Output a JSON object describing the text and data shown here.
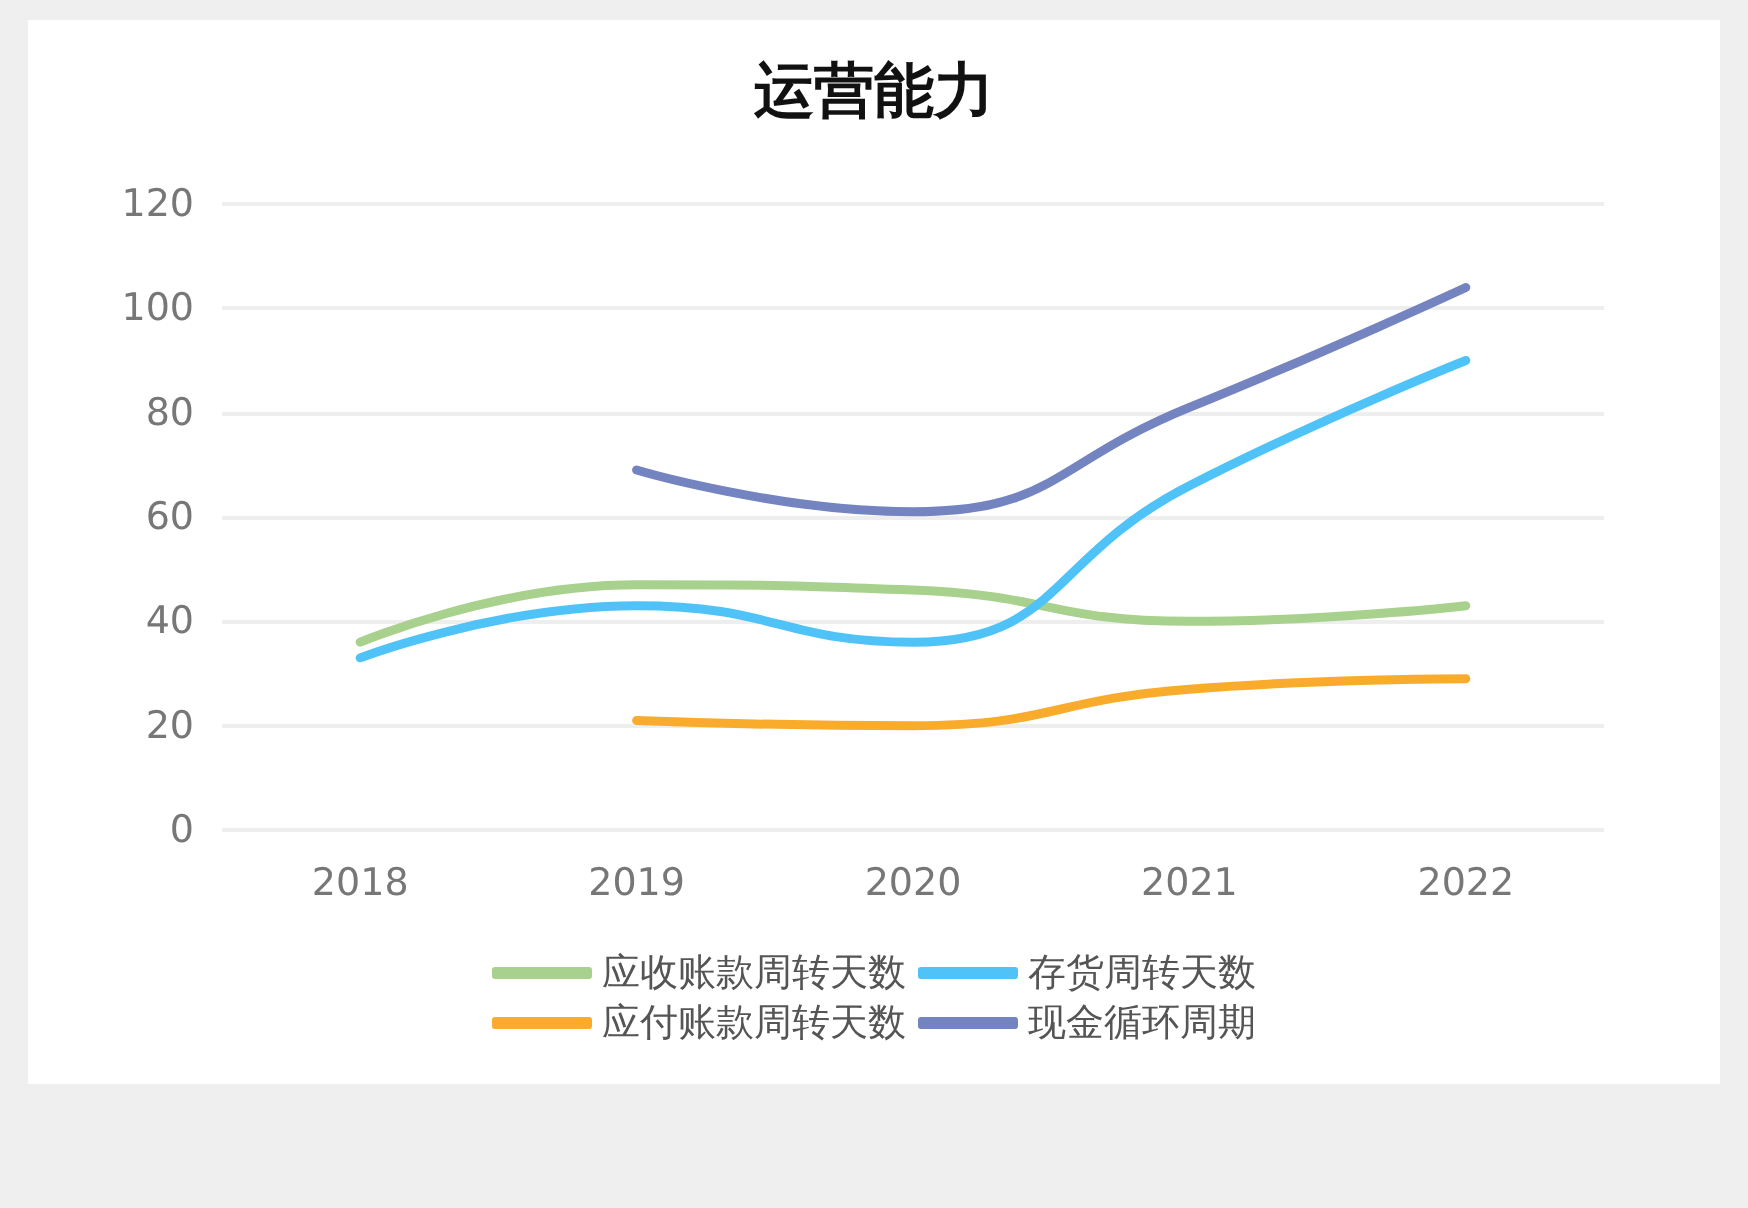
{
  "chart_data": {
    "type": "line",
    "title": "运营能力",
    "categories": [
      "2018",
      "2019",
      "2020",
      "2021",
      "2022"
    ],
    "series": [
      {
        "name": "应收账款周转天数",
        "color": "#a8d18d",
        "values": [
          36,
          47,
          46,
          40,
          43
        ]
      },
      {
        "name": "存货周转天数",
        "color": "#4fc3f7",
        "values": [
          33,
          43,
          36,
          66,
          90
        ]
      },
      {
        "name": "应付账款周转天数",
        "color": "#f9ab2c",
        "values": [
          null,
          21,
          20,
          27,
          29
        ]
      },
      {
        "name": "现金循环周期",
        "color": "#7484c1",
        "values": [
          null,
          69,
          61,
          81,
          104
        ]
      }
    ],
    "ylim": [
      0,
      120
    ],
    "yticks": [
      0,
      20,
      40,
      60,
      80,
      100,
      120
    ],
    "grid": "y",
    "legend": "bottom",
    "marker": "none",
    "line_style": "solid"
  }
}
